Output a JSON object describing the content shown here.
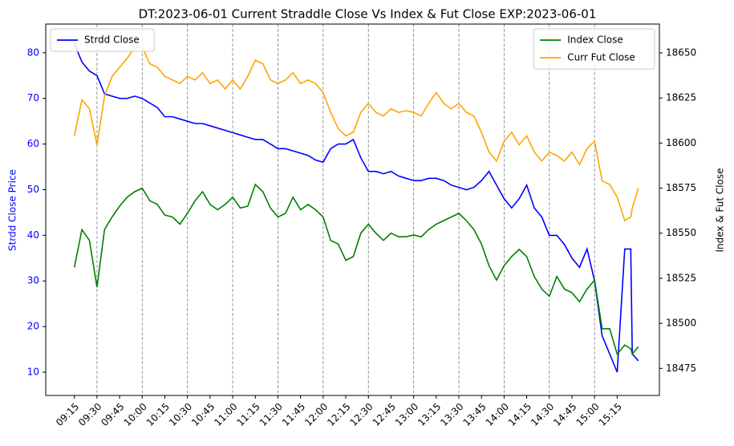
{
  "chart_data": {
    "type": "line",
    "title": "DT:2023-06-01 Current Straddle Close Vs Index & Fut Close EXP:2023-06-01",
    "ylabel": "Strdd Close Price",
    "y2label": "Index & Fut Close",
    "ylabel_color": "#0000ff",
    "x": [
      "09:15",
      "09:20",
      "09:25",
      "09:30",
      "09:35",
      "09:40",
      "09:45",
      "09:50",
      "09:55",
      "10:00",
      "10:05",
      "10:10",
      "10:15",
      "10:20",
      "10:25",
      "10:30",
      "10:35",
      "10:40",
      "10:45",
      "10:50",
      "10:55",
      "11:00",
      "11:05",
      "11:10",
      "11:15",
      "11:20",
      "11:25",
      "11:30",
      "11:35",
      "11:40",
      "11:45",
      "11:50",
      "11:55",
      "12:00",
      "12:05",
      "12:10",
      "12:15",
      "12:20",
      "12:25",
      "12:30",
      "12:35",
      "12:40",
      "12:45",
      "12:50",
      "12:55",
      "13:00",
      "13:05",
      "13:10",
      "13:15",
      "13:20",
      "13:25",
      "13:30",
      "13:35",
      "13:40",
      "13:45",
      "13:50",
      "13:55",
      "14:00",
      "14:05",
      "14:10",
      "14:15",
      "14:20",
      "14:25",
      "14:30",
      "14:35",
      "14:40",
      "14:45",
      "14:50",
      "14:55",
      "15:00",
      "15:05",
      "15:10",
      "15:15",
      "15:20",
      "15:24",
      "15:25",
      "15:29"
    ],
    "series": [
      {
        "name": "Strdd Close",
        "color": "#0000ff",
        "axis": "y",
        "values": [
          82,
          78,
          76,
          75,
          71,
          70.5,
          70,
          70,
          70.5,
          70,
          69,
          68,
          66,
          66,
          65.5,
          65,
          64.5,
          64.5,
          64,
          63.5,
          63,
          62.5,
          62,
          61.5,
          61,
          61,
          60,
          59,
          59,
          58.5,
          58,
          57.5,
          56.5,
          56,
          59,
          60,
          60,
          61,
          57,
          54,
          54,
          53.5,
          54,
          53,
          52.5,
          52,
          52,
          52.5,
          52.5,
          52,
          51,
          50.5,
          50,
          50.5,
          52,
          54,
          51,
          48,
          46,
          48,
          51,
          46,
          44,
          40,
          40,
          38,
          35,
          33,
          37,
          30,
          18,
          14,
          10,
          37,
          37,
          14,
          12.5
        ]
      },
      {
        "name": "Index Close",
        "color": "#008000",
        "axis": "y2",
        "values": [
          18531,
          18552,
          18546,
          18520,
          18552,
          18559,
          18565,
          18570,
          18573,
          18575,
          18568,
          18566,
          18560,
          18559,
          18555,
          18561,
          18568,
          18573,
          18566,
          18563,
          18566,
          18570,
          18564,
          18565,
          18577,
          18573,
          18564,
          18559,
          18561,
          18570,
          18563,
          18566,
          18563,
          18559,
          18546,
          18544,
          18535,
          18537,
          18550,
          18555,
          18550,
          18546,
          18550,
          18548,
          18548,
          18549,
          18548,
          18552,
          18555,
          18557,
          18559,
          18561,
          18557,
          18552,
          18544,
          18532,
          18524,
          18532,
          18537,
          18541,
          18537,
          18526,
          18519,
          18515,
          18526,
          18519,
          18517,
          18512,
          18519,
          18524,
          18497,
          18497,
          18483,
          18488,
          18486,
          18483,
          18487
        ]
      },
      {
        "name": "Curr Fut Close",
        "color": "#ffa500",
        "axis": "y2",
        "values": [
          18604,
          18624,
          18619,
          18599,
          18626,
          18637,
          18642,
          18647,
          18653,
          18653,
          18644,
          18642,
          18637,
          18635,
          18633,
          18637,
          18635,
          18639,
          18633,
          18635,
          18630,
          18635,
          18630,
          18637,
          18646,
          18644,
          18635,
          18633,
          18635,
          18639,
          18633,
          18635,
          18633,
          18628,
          18617,
          18608,
          18604,
          18606,
          18617,
          18622,
          18617,
          18615,
          18619,
          18617,
          18618,
          18617,
          18615,
          18622,
          18628,
          18622,
          18619,
          18622,
          18617,
          18615,
          18606,
          18595,
          18590,
          18601,
          18606,
          18599,
          18604,
          18595,
          18590,
          18595,
          18593,
          18590,
          18595,
          18588,
          18597,
          18601,
          18579,
          18577,
          18570,
          18557,
          18559,
          18564,
          18575
        ]
      }
    ],
    "xlim": [
      "08:56",
      "15:43"
    ],
    "xticks": [
      "09:15",
      "09:30",
      "09:45",
      "10:00",
      "10:15",
      "10:30",
      "10:45",
      "11:00",
      "11:15",
      "11:30",
      "11:45",
      "12:00",
      "12:15",
      "12:30",
      "12:45",
      "13:00",
      "13:15",
      "13:30",
      "13:45",
      "14:00",
      "14:15",
      "14:30",
      "14:45",
      "15:00",
      "15:15"
    ],
    "vlines": [
      "09:30",
      "10:00",
      "10:30",
      "11:00",
      "11:30",
      "12:00",
      "12:30",
      "13:00",
      "13:30",
      "14:00",
      "14:30",
      "15:00"
    ],
    "ylim": [
      4.9,
      86.3
    ],
    "yticks": [
      10,
      20,
      30,
      40,
      50,
      60,
      70,
      80
    ],
    "y2lim": [
      18460,
      18666
    ],
    "y2ticks": [
      18475,
      18500,
      18525,
      18550,
      18575,
      18600,
      18625,
      18650
    ],
    "legend_loc": "upper left",
    "legend2_loc": "upper right"
  }
}
